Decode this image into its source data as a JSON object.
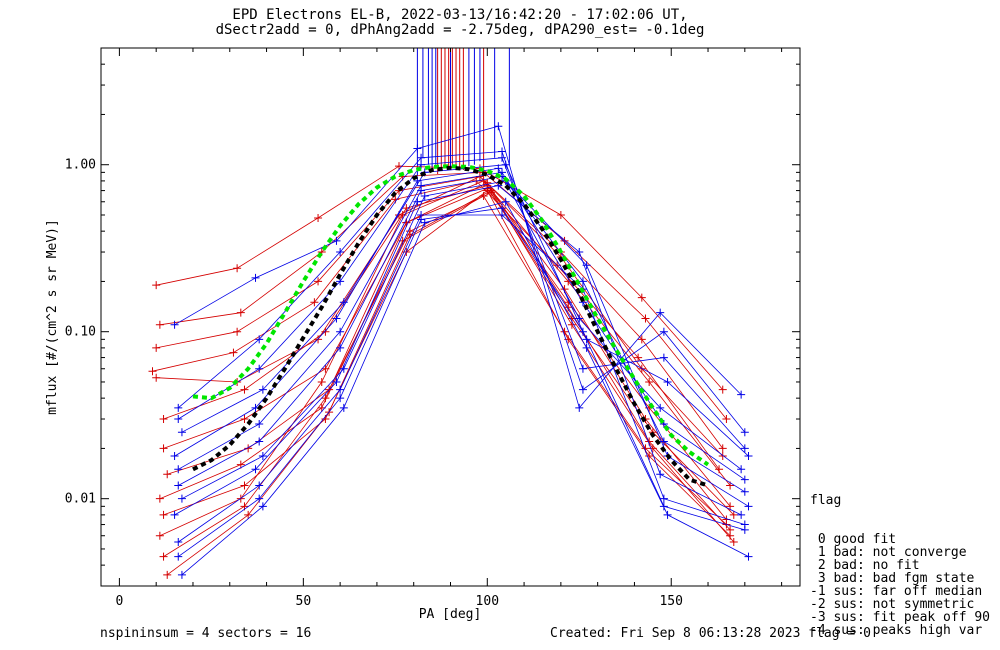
{
  "header": {
    "title_line1": "EPD Electrons EL-B, 2022-03-13/16:42:20 - 17:02:06 UT,",
    "title_line2": "dSectr2add = 0, dPhAng2add = -2.75deg, dPA290_est=  -0.1deg"
  },
  "footer": {
    "left": "nspininsum =  4  sectors = 16",
    "right": "Created: Fri Sep  8 06:13:28 2023   flag = 0"
  },
  "legend": {
    "title": "flag",
    "items": [
      " 0 good fit",
      " 1 bad: not converge",
      " 2 bad: no fit",
      " 3 bad: bad fgm state",
      "-1 sus: far off median",
      "-2 sus: not symmetric",
      "-3 sus: fit peak off 90",
      "-4 sus: peaks high var"
    ]
  },
  "chart_data": {
    "type": "line",
    "xlabel": "PA [deg]",
    "ylabel": "mflux [#/(cm^2 s sr MeV)]",
    "xlim": [
      -5,
      185
    ],
    "ylim": [
      0.003,
      5.0
    ],
    "yscale": "log",
    "x_ticks": [
      0,
      50,
      100,
      150
    ],
    "x_tick_labels": [
      "0",
      "50",
      "100",
      "150"
    ],
    "y_ticks": [
      0.01,
      0.1,
      1.0
    ],
    "y_tick_labels": [
      "0.01",
      "0.10",
      "1.00"
    ],
    "colors": {
      "red": "#d40000",
      "blue": "#0000e6",
      "green": "#00e600",
      "black": "#000000"
    },
    "series": [
      {
        "color": "red",
        "x": [
          10,
          32,
          54,
          76,
          98,
          120,
          142,
          164
        ],
        "y": [
          0.19,
          0.24,
          0.48,
          0.98,
          0.95,
          0.5,
          0.16,
          0.045
        ]
      },
      {
        "color": "red",
        "x": [
          11,
          33,
          55,
          77,
          99,
          121,
          143,
          165
        ],
        "y": [
          0.11,
          0.13,
          0.3,
          0.85,
          0.9,
          0.35,
          0.12,
          0.03
        ]
      },
      {
        "color": "red",
        "x": [
          10,
          32,
          54,
          76,
          98,
          120,
          142,
          164
        ],
        "y": [
          0.08,
          0.1,
          0.2,
          0.7,
          0.85,
          0.3,
          0.09,
          0.02
        ]
      },
      {
        "color": "red",
        "x": [
          9,
          31,
          53,
          75,
          97,
          119,
          141,
          163
        ],
        "y": [
          0.058,
          0.075,
          0.15,
          0.62,
          0.8,
          0.25,
          0.07,
          0.015
        ]
      },
      {
        "color": "red",
        "x": [
          12,
          34,
          56,
          78,
          100,
          122,
          144,
          166
        ],
        "y": [
          0.03,
          0.045,
          0.1,
          0.55,
          0.75,
          0.2,
          0.05,
          0.012
        ]
      },
      {
        "color": "red",
        "x": [
          12,
          34,
          56,
          78,
          100,
          122,
          144,
          166
        ],
        "y": [
          0.02,
          0.03,
          0.06,
          0.45,
          0.72,
          0.15,
          0.035,
          0.009
        ]
      },
      {
        "color": "red",
        "x": [
          13,
          35,
          57,
          79,
          101,
          123,
          145,
          167
        ],
        "y": [
          0.014,
          0.02,
          0.045,
          0.4,
          0.68,
          0.12,
          0.025,
          0.008
        ]
      },
      {
        "color": "red",
        "x": [
          11,
          33,
          55,
          77,
          99,
          121,
          143,
          165
        ],
        "y": [
          0.01,
          0.016,
          0.035,
          0.35,
          0.65,
          0.1,
          0.02,
          0.007
        ]
      },
      {
        "color": "red",
        "x": [
          12,
          34,
          56,
          78,
          100,
          122,
          144,
          166
        ],
        "y": [
          0.008,
          0.012,
          0.03,
          0.3,
          0.7,
          0.09,
          0.018,
          0.006
        ]
      },
      {
        "color": "red",
        "x": [
          11,
          33,
          55,
          77,
          99,
          121,
          143,
          165
        ],
        "y": [
          0.006,
          0.01,
          0.05,
          0.5,
          0.8,
          0.18,
          0.03,
          0.0075
        ]
      },
      {
        "color": "red",
        "x": [
          12,
          34,
          56,
          78,
          100,
          122,
          144,
          166
        ],
        "y": [
          0.0045,
          0.009,
          0.04,
          0.45,
          0.78,
          0.14,
          0.022,
          0.0065
        ]
      },
      {
        "color": "red",
        "x": [
          13,
          35,
          57,
          79,
          101,
          123,
          145,
          167
        ],
        "y": [
          0.0035,
          0.008,
          0.033,
          0.38,
          0.7,
          0.11,
          0.02,
          0.0055
        ]
      },
      {
        "color": "red",
        "x": [
          10,
          32,
          54,
          76,
          98,
          120,
          142,
          164
        ],
        "y": [
          0.053,
          0.05,
          0.09,
          0.5,
          0.85,
          0.28,
          0.06,
          0.018
        ]
      },
      {
        "color": "blue",
        "x": [
          15,
          37,
          59,
          81,
          103,
          125,
          147,
          169
        ],
        "y": [
          0.11,
          0.21,
          0.35,
          1.25,
          1.7,
          0.035,
          0.13,
          0.042
        ]
      },
      {
        "color": "blue",
        "x": [
          16,
          38,
          60,
          82,
          104,
          126,
          148,
          170
        ],
        "y": [
          0.035,
          0.09,
          0.3,
          1.1,
          1.2,
          0.045,
          0.1,
          0.025
        ]
      },
      {
        "color": "blue",
        "x": [
          16,
          38,
          60,
          82,
          104,
          126,
          148,
          170
        ],
        "y": [
          0.03,
          0.06,
          0.2,
          1.0,
          1.1,
          0.06,
          0.07,
          0.02
        ]
      },
      {
        "color": "blue",
        "x": [
          17,
          39,
          61,
          83,
          105,
          127,
          149,
          171
        ],
        "y": [
          0.025,
          0.045,
          0.15,
          0.9,
          1.0,
          0.09,
          0.05,
          0.018
        ]
      },
      {
        "color": "blue",
        "x": [
          15,
          37,
          59,
          81,
          103,
          125,
          147,
          169
        ],
        "y": [
          0.018,
          0.035,
          0.12,
          0.8,
          0.95,
          0.12,
          0.035,
          0.015
        ]
      },
      {
        "color": "blue",
        "x": [
          16,
          38,
          60,
          82,
          104,
          126,
          148,
          170
        ],
        "y": [
          0.015,
          0.028,
          0.1,
          0.75,
          0.9,
          0.15,
          0.028,
          0.013
        ]
      },
      {
        "color": "blue",
        "x": [
          16,
          38,
          60,
          82,
          104,
          126,
          148,
          170
        ],
        "y": [
          0.012,
          0.022,
          0.08,
          0.7,
          0.85,
          0.2,
          0.022,
          0.011
        ]
      },
      {
        "color": "blue",
        "x": [
          17,
          39,
          61,
          83,
          105,
          127,
          149,
          171
        ],
        "y": [
          0.01,
          0.018,
          0.06,
          0.65,
          0.8,
          0.25,
          0.018,
          0.009
        ]
      },
      {
        "color": "blue",
        "x": [
          15,
          37,
          59,
          81,
          103,
          125,
          147,
          169
        ],
        "y": [
          0.008,
          0.015,
          0.05,
          0.6,
          0.75,
          0.3,
          0.014,
          0.008
        ]
      },
      {
        "color": "blue",
        "x": [
          16,
          38,
          60,
          82,
          104,
          126,
          148,
          170
        ],
        "y": [
          0.0055,
          0.012,
          0.045,
          0.5,
          0.5,
          0.18,
          0.01,
          0.007
        ]
      },
      {
        "color": "blue",
        "x": [
          16,
          38,
          60,
          82,
          104,
          126,
          148,
          170
        ],
        "y": [
          0.0045,
          0.01,
          0.04,
          0.47,
          0.55,
          0.1,
          0.009,
          0.0065
        ]
      },
      {
        "color": "blue",
        "x": [
          17,
          39,
          61,
          83,
          105,
          127,
          149,
          171
        ],
        "y": [
          0.0035,
          0.009,
          0.035,
          0.45,
          0.6,
          0.08,
          0.008,
          0.0045
        ]
      }
    ],
    "fit_curves": [
      {
        "color": "green",
        "style": "dashed",
        "x": [
          20,
          25,
          30,
          35,
          40,
          45,
          50,
          55,
          60,
          65,
          70,
          75,
          80,
          85,
          90,
          95,
          100,
          105,
          110,
          115,
          120,
          125,
          130,
          135,
          140,
          145,
          150,
          155,
          160
        ],
        "y": [
          0.041,
          0.04,
          0.046,
          0.06,
          0.085,
          0.13,
          0.2,
          0.3,
          0.43,
          0.58,
          0.73,
          0.85,
          0.93,
          0.97,
          0.98,
          0.97,
          0.92,
          0.82,
          0.65,
          0.46,
          0.3,
          0.19,
          0.12,
          0.078,
          0.052,
          0.035,
          0.024,
          0.019,
          0.016
        ]
      },
      {
        "color": "black",
        "style": "dashed",
        "x": [
          20,
          25,
          30,
          35,
          40,
          45,
          50,
          55,
          60,
          65,
          70,
          75,
          80,
          85,
          90,
          95,
          100,
          105,
          110,
          115,
          120,
          125,
          130,
          135,
          140,
          145,
          150,
          155,
          160
        ],
        "y": [
          0.015,
          0.017,
          0.021,
          0.028,
          0.04,
          0.06,
          0.092,
          0.14,
          0.22,
          0.34,
          0.5,
          0.68,
          0.83,
          0.93,
          0.96,
          0.94,
          0.87,
          0.75,
          0.58,
          0.41,
          0.27,
          0.17,
          0.1,
          0.06,
          0.037,
          0.024,
          0.017,
          0.013,
          0.012
        ]
      }
    ],
    "saturated_spikes": [
      {
        "color": "red",
        "x": [
          86.5,
          87.5,
          88.5,
          89.5,
          90.5,
          91.5,
          92.5,
          93.5,
          99
        ],
        "y_from": [
          0.88,
          0.92,
          0.95,
          0.97,
          0.98,
          0.97,
          0.95,
          0.93,
          0.9
        ]
      },
      {
        "color": "blue",
        "x": [
          81,
          82.5,
          84,
          85,
          86,
          90,
          95,
          96.5,
          98,
          102,
          106
        ],
        "y_from": [
          0.85,
          1.1,
          1.0,
          0.95,
          1.0,
          0.97,
          0.98,
          1.0,
          1.05,
          1.1,
          1.0
        ]
      }
    ]
  }
}
